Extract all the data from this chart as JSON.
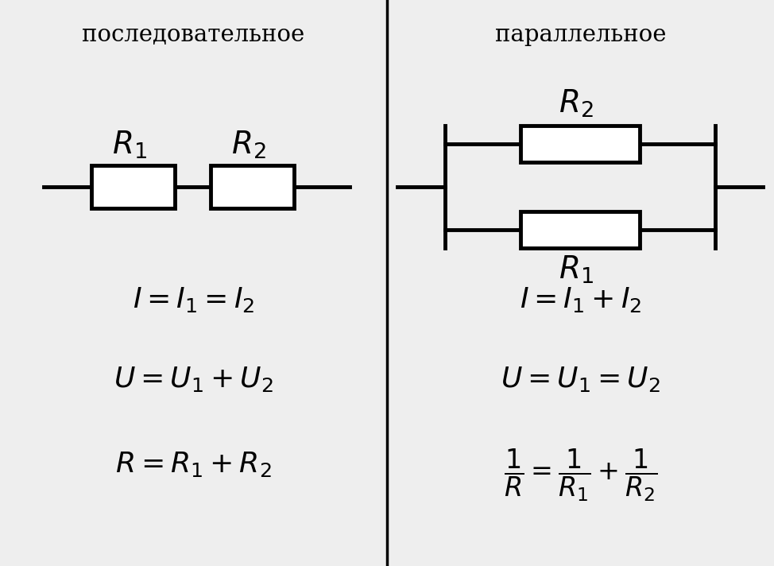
{
  "bg_color": "#eeeeee",
  "divider_color": "#000000",
  "title_left": "последовательное",
  "title_right": "параллельное",
  "title_fontsize": 21,
  "formula_fontsize": 26,
  "label_fontsize": 28,
  "fig_width": 9.74,
  "fig_height": 7.12,
  "dpi": 100
}
